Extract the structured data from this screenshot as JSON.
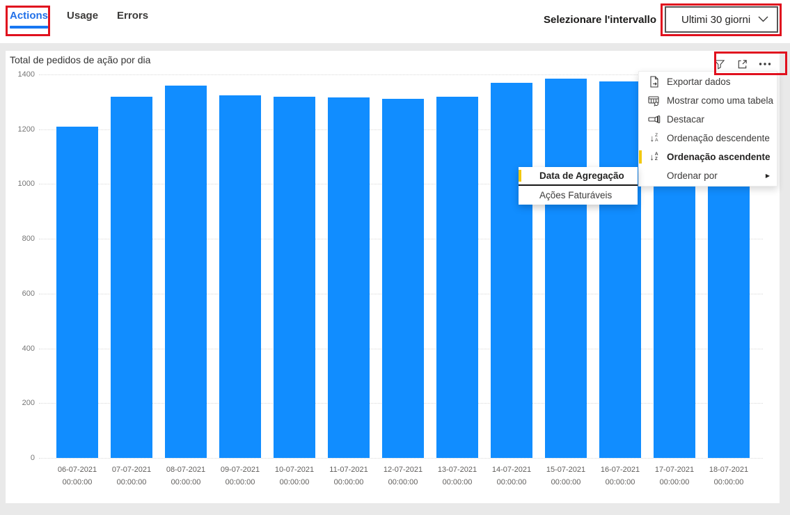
{
  "tabs": [
    {
      "label": "Actions",
      "active": true
    },
    {
      "label": "Usage",
      "active": false
    },
    {
      "label": "Errors",
      "active": false
    }
  ],
  "interval": {
    "label": "Selezionare l'intervallo",
    "value": "Ultimi 30 giorni",
    "chevron_icon": "chevron-down-icon"
  },
  "chart_toolbar": {
    "icons": [
      "filter-icon",
      "focus-mode-icon",
      "more-options-icon"
    ]
  },
  "chart_data": {
    "type": "bar",
    "title": "Total de pedidos de ação por dia",
    "categories": [
      "06-07-2021",
      "07-07-2021",
      "08-07-2021",
      "09-07-2021",
      "10-07-2021",
      "11-07-2021",
      "12-07-2021",
      "13-07-2021",
      "14-07-2021",
      "15-07-2021",
      "16-07-2021",
      "17-07-2021",
      "18-07-2021"
    ],
    "time_label": "00:00:00",
    "values": [
      1210,
      1320,
      1360,
      1325,
      1320,
      1315,
      1310,
      1320,
      1370,
      1385,
      1375,
      1370,
      1365
    ],
    "occluded_categories": [
      "17-07-2021",
      "18-07-2021"
    ],
    "ylim": [
      0,
      1400
    ],
    "yticks": [
      0,
      200,
      400,
      600,
      800,
      1000,
      1200,
      1400
    ],
    "grid": "dotted",
    "legend": "none",
    "xlabel": "",
    "ylabel": "",
    "bar_color": "#118DFF"
  },
  "context_menu": {
    "items": [
      {
        "label": "Exportar dados",
        "icon": "export-data-icon",
        "selected": false,
        "submenu": false
      },
      {
        "label": "Mostrar como uma tabela",
        "icon": "show-as-table-icon",
        "selected": false,
        "submenu": false
      },
      {
        "label": "Destacar",
        "icon": "spotlight-icon",
        "selected": false,
        "submenu": false
      },
      {
        "label": "Ordenação descendente",
        "icon": "sort-descending-icon",
        "selected": false,
        "submenu": false
      },
      {
        "label": "Ordenação ascendente",
        "icon": "sort-ascending-icon",
        "selected": true,
        "submenu": false
      },
      {
        "label": "Ordenar por",
        "icon": "",
        "selected": false,
        "submenu": true
      }
    ]
  },
  "sort_submenu": {
    "items": [
      {
        "label": "Data de Agregação",
        "selected": true
      },
      {
        "label": "Ações Faturáveis",
        "selected": false
      }
    ]
  },
  "colors": {
    "bar": "#118DFF",
    "tab_active": "#2170E8",
    "tab_underline": "#1877F2",
    "accent_yellow": "#F2C80F",
    "annotation_red": "#E0101E",
    "page_background": "#E9E9E9",
    "panel_background": "#FFFFFF"
  }
}
